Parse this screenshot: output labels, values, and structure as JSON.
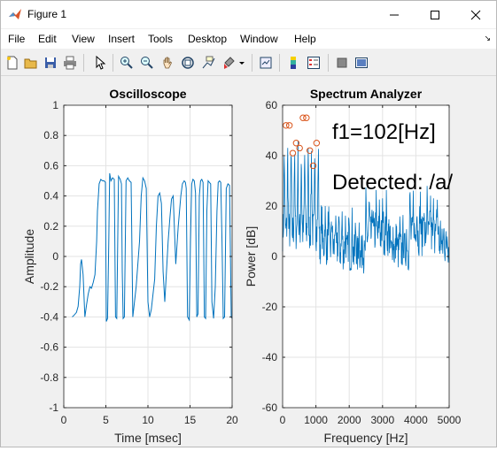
{
  "window": {
    "title": "Figure 1"
  },
  "menu": [
    "File",
    "Edit",
    "View",
    "Insert",
    "Tools",
    "Desktop",
    "Window",
    "Help"
  ],
  "toolbar": [
    "new-figure-icon",
    "open-file-icon",
    "save-icon",
    "print-icon",
    "pointer-icon",
    "zoom-in-icon",
    "zoom-out-icon",
    "pan-icon",
    "rotate-3d-icon",
    "data-cursor-icon",
    "brush-icon",
    "link-plot-icon",
    "colorbar-icon",
    "legend-icon",
    "hide-plot-tools-icon",
    "show-plot-tools-icon"
  ],
  "colors": {
    "line": "#0072bd",
    "marker": "#d95319",
    "axes_bg": "#ffffff",
    "figure_bg": "#f0f0f0"
  },
  "chart_data": [
    {
      "type": "line",
      "title": "Oscilloscope",
      "xlabel": "Time [msec]",
      "ylabel": "Amplitude",
      "xlim": [
        0,
        20
      ],
      "ylim": [
        -1,
        1
      ],
      "xticks": [
        "0",
        "5",
        "10",
        "15",
        "20"
      ],
      "yticks": [
        "-1",
        "-0.8",
        "-0.6",
        "-0.4",
        "-0.2",
        "0",
        "0.2",
        "0.4",
        "0.6",
        "0.8",
        "1"
      ],
      "grid": true,
      "series": [
        {
          "x": [
            1.0,
            1.2,
            1.5,
            1.7,
            1.9,
            2.0,
            2.1,
            2.3,
            2.5,
            2.7,
            2.9,
            3.1,
            3.3,
            3.5,
            3.7,
            3.9,
            4.0,
            4.2,
            4.4,
            4.6,
            4.8,
            4.95,
            5.05,
            5.2,
            5.35,
            5.45,
            5.6,
            5.8,
            6.0,
            6.15,
            6.3,
            6.5,
            6.7,
            6.85,
            6.95,
            7.05,
            7.2,
            7.4,
            7.6,
            7.8,
            8.0,
            8.2,
            8.4,
            8.6,
            8.8,
            9.0,
            9.2,
            9.4,
            9.6,
            9.8,
            10.0,
            10.2,
            10.4,
            10.6,
            10.8,
            11.0,
            11.2,
            11.4,
            11.6,
            11.8,
            12.0,
            12.2,
            12.4,
            12.6,
            12.8,
            13.0,
            13.3,
            13.6,
            13.9,
            14.1,
            14.3,
            14.45,
            14.55,
            14.7,
            14.9,
            15.05,
            15.2,
            15.35,
            15.5,
            15.65,
            15.8,
            15.95,
            16.1,
            16.25,
            16.4,
            16.55,
            16.7,
            16.85,
            17.0,
            17.15,
            17.3,
            17.45,
            17.6,
            17.8,
            18.0,
            18.2,
            18.35,
            18.5,
            18.65,
            18.8,
            18.95,
            19.1,
            19.3,
            19.5,
            19.7,
            19.9,
            20.0
          ],
          "y": [
            -0.4,
            -0.39,
            -0.37,
            -0.33,
            -0.2,
            -0.05,
            -0.02,
            -0.12,
            -0.4,
            -0.32,
            -0.25,
            -0.2,
            -0.21,
            -0.17,
            -0.12,
            0.1,
            0.3,
            0.48,
            0.51,
            0.5,
            0.5,
            0.49,
            -0.43,
            -0.41,
            0.1,
            0.55,
            0.5,
            0.52,
            0.51,
            -0.4,
            -0.41,
            0.53,
            0.51,
            0.48,
            -0.1,
            -0.41,
            -0.4,
            0.5,
            0.52,
            0.5,
            0.49,
            -0.4,
            -0.3,
            -0.2,
            -0.05,
            0.1,
            0.4,
            0.52,
            0.5,
            0.45,
            -0.3,
            -0.4,
            -0.35,
            -0.25,
            -0.15,
            0.2,
            0.4,
            0.42,
            0.35,
            -0.1,
            -0.3,
            -0.1,
            0.1,
            0.25,
            0.38,
            0.4,
            -0.05,
            0.2,
            0.4,
            0.48,
            0.5,
            0.49,
            0.45,
            -0.4,
            -0.42,
            0.1,
            0.48,
            0.51,
            0.5,
            0.42,
            -0.4,
            -0.38,
            0.4,
            0.5,
            0.51,
            0.49,
            -0.4,
            -0.41,
            0.3,
            0.5,
            0.49,
            0.48,
            -0.3,
            -0.41,
            -0.2,
            0.3,
            0.49,
            0.5,
            0.49,
            0.1,
            -0.41,
            -0.4,
            0.45,
            0.48,
            0.47,
            -0.4,
            -0.41
          ]
        }
      ]
    },
    {
      "type": "line",
      "title": "Spectrum Analyzer",
      "xlabel": "Frequency [Hz]",
      "ylabel": "Power [dB]",
      "xlim": [
        0,
        5000
      ],
      "ylim": [
        -60,
        60
      ],
      "xticks": [
        "0",
        "1000",
        "2000",
        "3000",
        "4000",
        "5000"
      ],
      "yticks": [
        "-60",
        "-40",
        "-20",
        "0",
        "20",
        "40",
        "60"
      ],
      "grid": true,
      "harmonic_peaks": {
        "x": [
          102,
          204,
          306,
          408,
          510,
          612,
          714,
          816,
          918,
          1020
        ],
        "y": [
          52,
          52,
          41,
          45,
          43,
          55,
          55,
          42,
          36,
          45
        ]
      },
      "annotations": [
        "f1=102[Hz]",
        "Detected: /a/"
      ]
    }
  ]
}
